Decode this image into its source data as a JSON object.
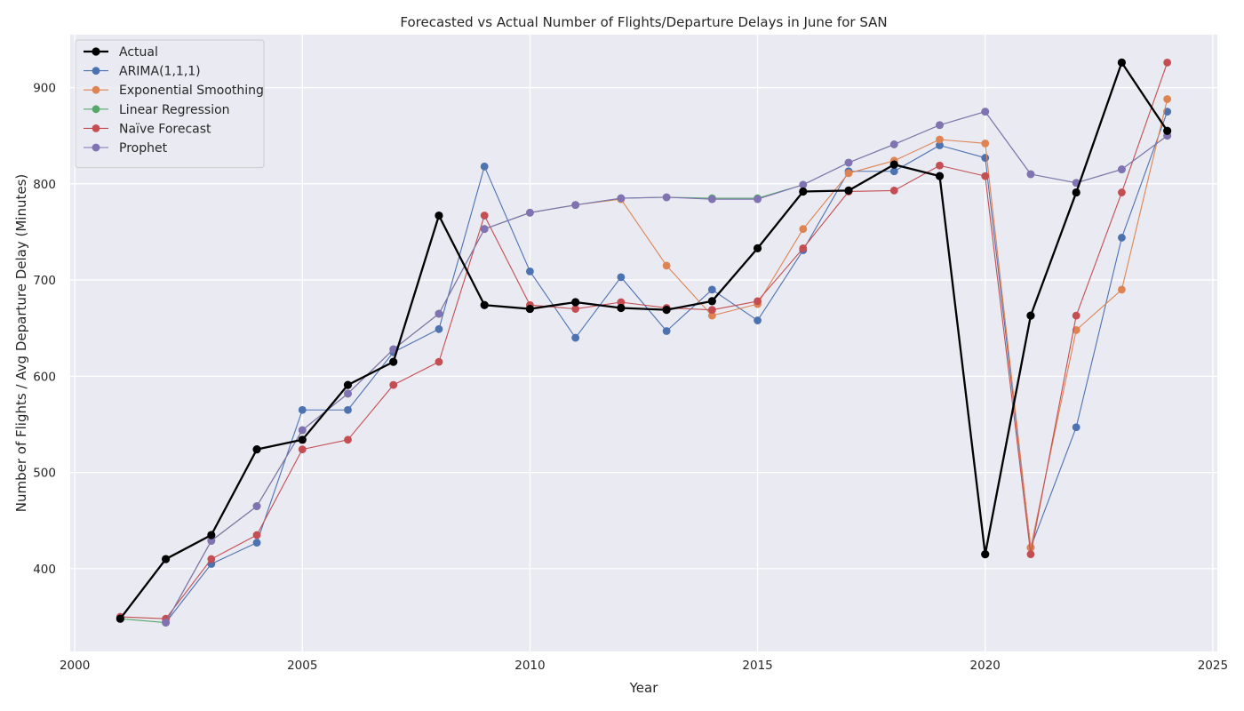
{
  "chart_data": {
    "type": "line",
    "title": "Forecasted vs Actual Number of Flights/Departure Delays in June for SAN",
    "xlabel": "Year",
    "ylabel": "Number of Flights / Avg Departure Delay (Minutes)",
    "xlim": [
      1999.9,
      2025.1
    ],
    "ylim": [
      314,
      955
    ],
    "xticks": [
      2000,
      2005,
      2010,
      2015,
      2020,
      2025
    ],
    "yticks": [
      400,
      500,
      600,
      700,
      800,
      900
    ],
    "grid": true,
    "legend_position": "upper left",
    "plot_background": "#eaeaf2",
    "grid_color": "#ffffff",
    "x": [
      2001,
      2002,
      2003,
      2004,
      2005,
      2006,
      2007,
      2008,
      2009,
      2010,
      2011,
      2012,
      2013,
      2014,
      2015,
      2016,
      2017,
      2018,
      2019,
      2020,
      2021,
      2022,
      2023,
      2024
    ],
    "series": [
      {
        "name": "Actual",
        "color": "#000000",
        "emphasis": true,
        "values": [
          348,
          410,
          435,
          524,
          534,
          591,
          615,
          767,
          674,
          670,
          677,
          671,
          669,
          678,
          733,
          792,
          793,
          820,
          808,
          415,
          663,
          791,
          926,
          855
        ]
      },
      {
        "name": "ARIMA(1,1,1)",
        "color": "#4c72b0",
        "values": [
          null,
          344,
          405,
          427,
          565,
          565,
          625,
          649,
          818,
          709,
          640,
          703,
          647,
          690,
          658,
          731,
          813,
          813,
          840,
          827,
          422,
          547,
          744,
          875
        ]
      },
      {
        "name": "Exponential Smoothing",
        "color": "#dd8452",
        "values": [
          null,
          344,
          429,
          465,
          544,
          582,
          628,
          665,
          753,
          770,
          778,
          784,
          715,
          663,
          675,
          753,
          811,
          824,
          846,
          842,
          422,
          648,
          690,
          888
        ]
      },
      {
        "name": "Linear Regression",
        "color": "#55a868",
        "values": [
          348,
          344,
          429,
          465,
          544,
          582,
          628,
          665,
          753,
          770,
          778,
          785,
          786,
          785,
          785,
          799,
          822,
          841,
          861,
          875,
          810,
          801,
          815,
          850
        ]
      },
      {
        "name": "Naïve Forecast",
        "color": "#c44e52",
        "values": [
          350,
          348,
          410,
          435,
          524,
          534,
          591,
          615,
          767,
          674,
          670,
          677,
          671,
          669,
          678,
          733,
          792,
          793,
          819,
          808,
          415,
          663,
          791,
          926
        ]
      },
      {
        "name": "Prophet",
        "color": "#8172b3",
        "values": [
          null,
          344,
          429,
          465,
          544,
          582,
          628,
          665,
          753,
          770,
          778,
          785,
          786,
          784,
          784,
          799,
          822,
          841,
          861,
          875,
          810,
          801,
          815,
          850
        ]
      }
    ]
  }
}
